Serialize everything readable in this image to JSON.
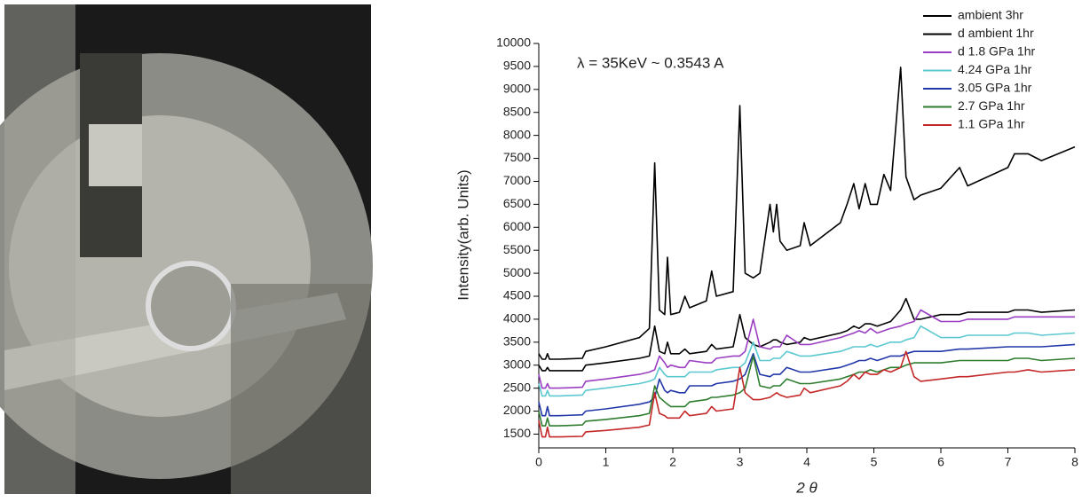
{
  "chart_data": {
    "type": "line",
    "annotation": "λ = 35KeV ~ 0.3543 A",
    "xlabel": "2 θ",
    "ylabel": "Intensity(arb. Units)",
    "xlim": [
      0,
      8
    ],
    "xticks": [
      0,
      1,
      2,
      3,
      4,
      5,
      6,
      7,
      8
    ],
    "ylim": [
      1200,
      10000
    ],
    "yticks": [
      1500,
      2000,
      2500,
      3000,
      3500,
      4000,
      4500,
      5000,
      5500,
      6000,
      6500,
      7000,
      7500,
      8000,
      8500,
      9000,
      9500,
      10000
    ],
    "legend": "top-right",
    "x": [
      0,
      0.05,
      0.1,
      0.13,
      0.16,
      0.3,
      0.65,
      0.7,
      1.0,
      1.5,
      1.65,
      1.73,
      1.8,
      1.88,
      1.92,
      1.97,
      2.1,
      2.18,
      2.25,
      2.5,
      2.58,
      2.65,
      2.9,
      3.0,
      3.08,
      3.2,
      3.3,
      3.45,
      3.5,
      3.55,
      3.6,
      3.7,
      3.9,
      3.96,
      4.05,
      4.5,
      4.6,
      4.7,
      4.78,
      4.87,
      4.95,
      5.05,
      5.15,
      5.25,
      5.4,
      5.48,
      5.6,
      5.7,
      6.0,
      6.28,
      6.4,
      7.0,
      7.1,
      7.3,
      7.5,
      8.0
    ],
    "series": [
      {
        "name": "ambient 3hr",
        "color": "#000000",
        "values": [
          3250,
          3130,
          3130,
          3250,
          3130,
          3130,
          3150,
          3300,
          3400,
          3600,
          3800,
          7400,
          4200,
          4100,
          5350,
          4100,
          4150,
          4500,
          4250,
          4400,
          5050,
          4500,
          4600,
          8650,
          5000,
          4900,
          5000,
          6500,
          5900,
          6500,
          5700,
          5500,
          5600,
          6100,
          5600,
          6100,
          6500,
          6950,
          6400,
          6950,
          6500,
          6500,
          7150,
          6800,
          9480,
          7100,
          6600,
          6700,
          6850,
          7300,
          6900,
          7300,
          7600,
          7600,
          7450,
          7750
        ]
      },
      {
        "name": "d ambient 1hr",
        "color": "#000000",
        "values": [
          3000,
          2880,
          2880,
          2950,
          2880,
          2880,
          2880,
          3000,
          3050,
          3150,
          3200,
          3850,
          3300,
          3250,
          3500,
          3250,
          3250,
          3350,
          3250,
          3300,
          3450,
          3350,
          3400,
          4100,
          3600,
          3450,
          3400,
          3500,
          3550,
          3550,
          3500,
          3450,
          3500,
          3600,
          3550,
          3700,
          3750,
          3850,
          3800,
          3900,
          3900,
          3850,
          3900,
          3950,
          4200,
          4450,
          4000,
          4000,
          4100,
          4100,
          4150,
          4150,
          4200,
          4200,
          4150,
          4200
        ]
      },
      {
        "name": "d 1.8 GPa 1hr",
        "color": "#9b3fc2",
        "values": [
          2800,
          2500,
          2500,
          2600,
          2500,
          2500,
          2520,
          2650,
          2700,
          2800,
          2850,
          2900,
          3200,
          3050,
          2950,
          3000,
          2950,
          2950,
          3100,
          3050,
          3050,
          3150,
          3200,
          3200,
          3300,
          4000,
          3400,
          3350,
          3400,
          3400,
          3400,
          3650,
          3450,
          3450,
          3450,
          3600,
          3650,
          3700,
          3750,
          3700,
          3800,
          3700,
          3750,
          3800,
          3850,
          3900,
          3950,
          4200,
          3950,
          3950,
          4000,
          4000,
          4050,
          4050,
          4050,
          4050
        ]
      },
      {
        "name": "4.24 GPa 1hr",
        "color": "#5cc8d0",
        "values": [
          2600,
          2330,
          2330,
          2450,
          2330,
          2330,
          2350,
          2450,
          2500,
          2600,
          2650,
          2700,
          2950,
          2800,
          2750,
          2750,
          2750,
          2750,
          2850,
          2850,
          2850,
          2900,
          2950,
          2950,
          3050,
          3500,
          3100,
          3100,
          3150,
          3150,
          3150,
          3300,
          3200,
          3200,
          3200,
          3300,
          3350,
          3400,
          3400,
          3400,
          3450,
          3400,
          3450,
          3500,
          3500,
          3550,
          3600,
          3850,
          3600,
          3600,
          3650,
          3650,
          3700,
          3700,
          3650,
          3700
        ]
      },
      {
        "name": "3.05 GPa 1hr",
        "color": "#2238a8",
        "values": [
          2200,
          1900,
          1900,
          2100,
          1900,
          1900,
          1920,
          2000,
          2050,
          2150,
          2200,
          2300,
          2700,
          2450,
          2400,
          2450,
          2400,
          2400,
          2550,
          2550,
          2550,
          2600,
          2650,
          2700,
          2800,
          3250,
          2800,
          2750,
          2800,
          2800,
          2800,
          2950,
          2850,
          2850,
          2850,
          2950,
          3000,
          3050,
          3100,
          3100,
          3150,
          3100,
          3150,
          3200,
          3200,
          3250,
          3300,
          3300,
          3300,
          3350,
          3350,
          3400,
          3400,
          3400,
          3400,
          3450
        ]
      },
      {
        "name": "2.7 GPa 1hr",
        "color": "#2e7d2e",
        "values": [
          2000,
          1680,
          1680,
          1850,
          1680,
          1680,
          1700,
          1780,
          1820,
          1900,
          1950,
          2550,
          2300,
          2200,
          2150,
          2100,
          2100,
          2100,
          2200,
          2250,
          2300,
          2300,
          2350,
          2400,
          2500,
          3200,
          2550,
          2500,
          2550,
          2550,
          2550,
          2700,
          2600,
          2600,
          2600,
          2700,
          2750,
          2800,
          2850,
          2850,
          2900,
          2850,
          2900,
          2950,
          2950,
          3000,
          3050,
          3050,
          3050,
          3100,
          3100,
          3100,
          3150,
          3150,
          3100,
          3150
        ]
      },
      {
        "name": "1.1 GPa 1hr",
        "color": "#c42828",
        "values": [
          1800,
          1440,
          1440,
          1650,
          1440,
          1440,
          1450,
          1550,
          1580,
          1650,
          1700,
          2400,
          1950,
          1900,
          1850,
          1850,
          1850,
          2000,
          1900,
          1950,
          2100,
          2000,
          2050,
          2950,
          2400,
          2250,
          2250,
          2300,
          2350,
          2400,
          2350,
          2300,
          2350,
          2500,
          2400,
          2550,
          2650,
          2800,
          2700,
          2850,
          2800,
          2800,
          2900,
          2850,
          2950,
          3300,
          2750,
          2650,
          2700,
          2750,
          2750,
          2850,
          2850,
          2900,
          2850,
          2900
        ]
      }
    ]
  }
}
